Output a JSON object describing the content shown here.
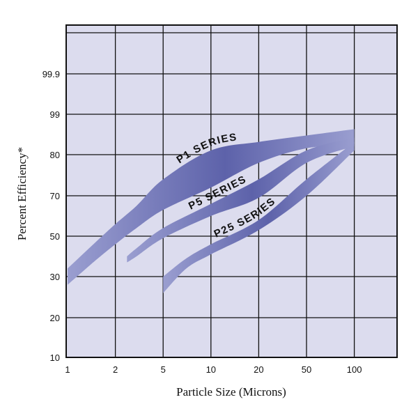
{
  "chart_data": {
    "type": "area",
    "title": "",
    "xlabel": "Particle Size (Microns)",
    "ylabel": "Percent Efficiency*",
    "x_ticks": [
      "1",
      "2",
      "5",
      "10",
      "20",
      "50",
      "100"
    ],
    "y_ticks": [
      "10",
      "20",
      "30",
      "50",
      "70",
      "80",
      "99",
      "99.9"
    ],
    "grid": true,
    "colors": {
      "plot_background": "#dcdcee",
      "band": "#5d62aa",
      "band_light": "#9a9ed0",
      "grid": "#111111"
    },
    "series": [
      {
        "name": "P1 SERIES",
        "x": [
          "1",
          "1.5",
          "2",
          "3",
          "5",
          "10",
          "20",
          "50",
          "100"
        ],
        "lower": [
          "28",
          "38",
          "46",
          "54",
          "63",
          "72",
          "78",
          "83",
          "85"
        ],
        "upper": [
          "34",
          "47",
          "56",
          "65",
          "74",
          "82",
          "86",
          "89",
          "92"
        ]
      },
      {
        "name": "P5 SERIES",
        "x": [
          "2.5",
          "3",
          "5",
          "10",
          "20",
          "50",
          "100"
        ],
        "lower": [
          "37",
          "40",
          "49",
          "60",
          "69",
          "78",
          "84"
        ],
        "upper": [
          "40",
          "44",
          "54",
          "66",
          "74",
          "82",
          "88"
        ]
      },
      {
        "name": "P25 SERIES",
        "x": [
          "5",
          "7",
          "10",
          "20",
          "50",
          "100"
        ],
        "lower": [
          "26",
          "34",
          "41",
          "53",
          "70",
          "82"
        ],
        "upper": [
          "30",
          "39",
          "46",
          "58",
          "74",
          "86"
        ]
      }
    ]
  }
}
